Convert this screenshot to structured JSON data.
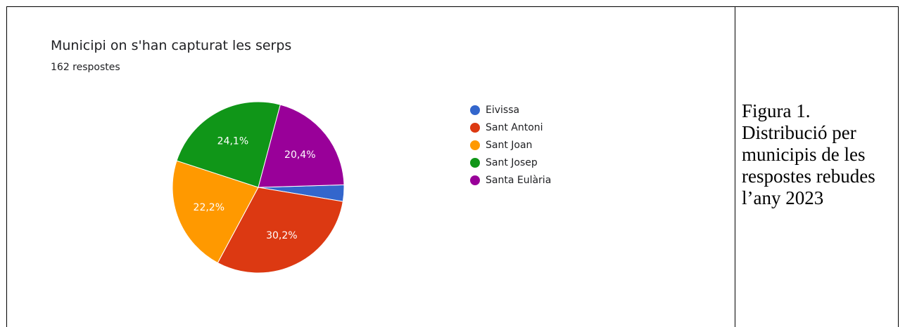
{
  "chart_data": {
    "type": "pie",
    "title": "Municipi on s'han capturat les serps",
    "subtitle": "162 respostes",
    "legend_position": "right",
    "slices": [
      {
        "label": "Eivissa",
        "value": 3.1,
        "color": "#3366cc",
        "data_label": ""
      },
      {
        "label": "Sant Antoni",
        "value": 30.2,
        "color": "#dc3912",
        "data_label": "30,2%"
      },
      {
        "label": "Sant Joan",
        "value": 22.2,
        "color": "#ff9900",
        "data_label": "22,2%"
      },
      {
        "label": "Sant Josep",
        "value": 24.1,
        "color": "#109618",
        "data_label": "24,1%"
      },
      {
        "label": "Santa Eulària",
        "value": 20.4,
        "color": "#990099",
        "data_label": "20,4%"
      }
    ]
  },
  "caption": {
    "lines": [
      "Figura 1.",
      "Distribució per",
      "municipis de les",
      "respostes rebudes",
      "l’any 2023"
    ]
  }
}
